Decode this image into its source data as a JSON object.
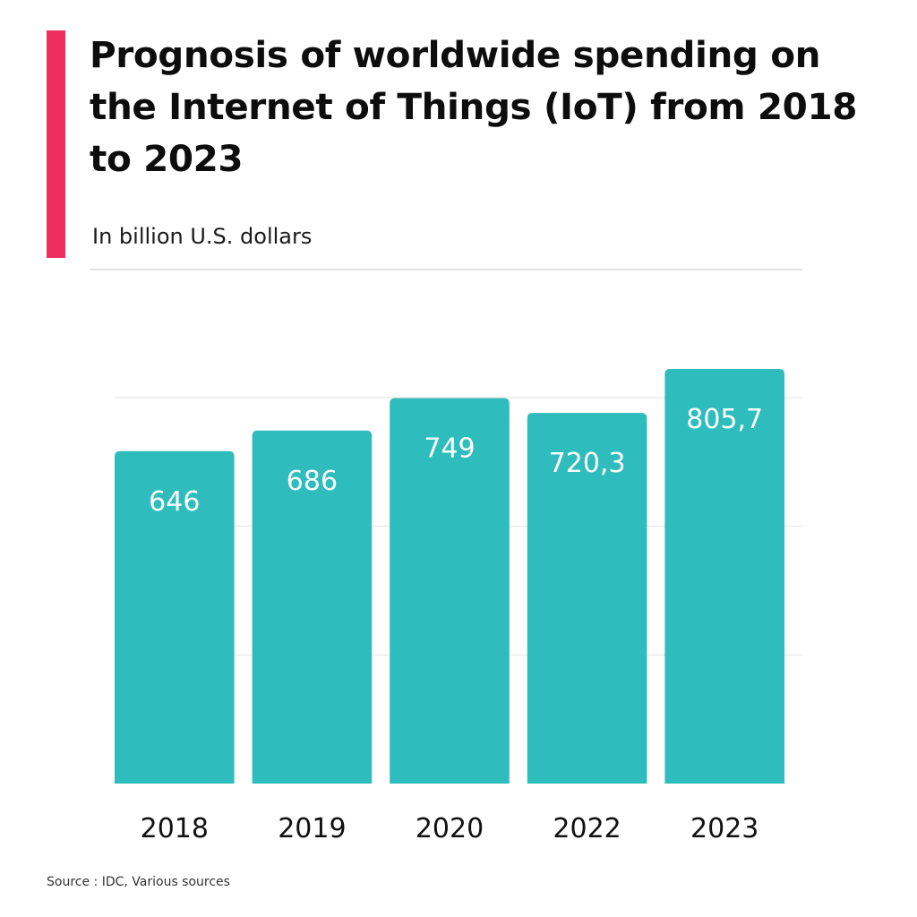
{
  "header": {
    "title": "Prognosis of worldwide spending on the Internet of Things (IoT) from 2018 to 2023",
    "subtitle": "In billion U.S. dollars",
    "accent_color": "#ef2d5e"
  },
  "footer": {
    "source": "Source : IDC, Various sources"
  },
  "chart_data": {
    "type": "bar",
    "title": "Prognosis of worldwide spending on the Internet of Things (IoT) from 2018 to 2023",
    "subtitle": "In billion U.S. dollars",
    "xlabel": "",
    "ylabel": "",
    "categories": [
      "2018",
      "2019",
      "2020",
      "2022",
      "2023"
    ],
    "values": [
      646,
      686,
      749,
      720.3,
      805.7
    ],
    "value_labels": [
      "646",
      "686",
      "749",
      "720,3",
      "805,7"
    ],
    "ylim": [
      0,
      750
    ],
    "ygrid_step": 250,
    "grid": true,
    "legend": "none",
    "bar_color": "#2ebdbc",
    "label_color": "#ffffff",
    "grid_color": "#e2e2e2"
  }
}
